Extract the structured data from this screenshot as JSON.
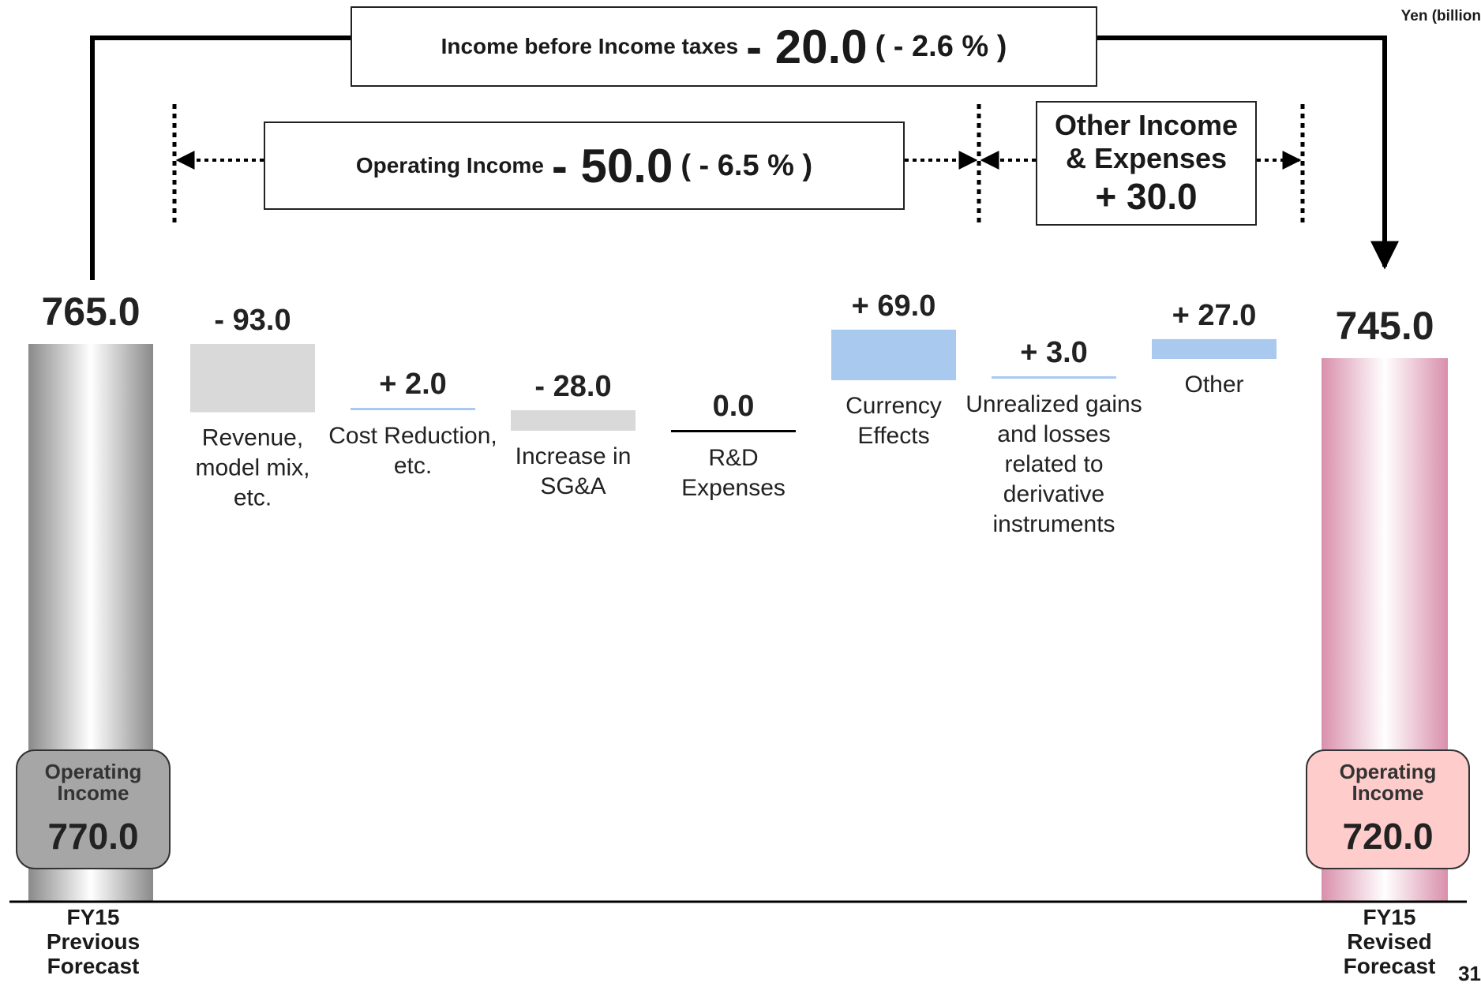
{
  "unit_label": "Yen (billion",
  "page_number": "31",
  "summary": {
    "ibt": {
      "label": "Income before Income taxes",
      "value": "- 20.0",
      "pct": "( - 2.6 % )"
    },
    "op": {
      "label": "Operating Income",
      "value": "- 50.0",
      "pct": "(  - 6.5 % )"
    },
    "other": {
      "line1": "Other Income",
      "line2": "& Expenses",
      "value": "+ 30.0"
    }
  },
  "start": {
    "value_label": "765.0",
    "inner_label": "Operating Income",
    "inner_value": "770.0",
    "label_lines": [
      "FY15",
      "Previous",
      "Forecast"
    ]
  },
  "end": {
    "value_label": "745.0",
    "inner_label": "Operating Income",
    "inner_value": "720.0",
    "label_lines": [
      "FY15",
      "Revised",
      "Forecast"
    ]
  },
  "colors": {
    "negative": "#d9d9d9",
    "positive": "#a9c9ef",
    "start_bar": "#8c8c8c",
    "end_bar": "#d98fab",
    "start_inner": "#a6a6a6",
    "end_inner": "#ffcccc"
  },
  "chart_data": {
    "type": "waterfall",
    "title": "",
    "unit": "Yen (billion",
    "start": {
      "category": "FY15 Previous Forecast",
      "value": 765.0
    },
    "end": {
      "category": "FY15 Revised Forecast",
      "value": 745.0
    },
    "steps": [
      {
        "name": "Revenue, model mix, etc.",
        "label_lines": [
          "Revenue,",
          "model mix,",
          "etc."
        ],
        "value": -93.0,
        "value_label": "- 93.0"
      },
      {
        "name": "Cost Reduction, etc.",
        "label_lines": [
          "Cost Reduction,",
          "etc."
        ],
        "value": 2.0,
        "value_label": "+ 2.0"
      },
      {
        "name": "Increase in SG&A",
        "label_lines": [
          "Increase in",
          "SG&A"
        ],
        "value": -28.0,
        "value_label": "- 28.0"
      },
      {
        "name": "R&D Expenses",
        "label_lines": [
          "R&D",
          "Expenses"
        ],
        "value": 0.0,
        "value_label": "0.0"
      },
      {
        "name": "Currency Effects",
        "label_lines": [
          "Currency",
          "Effects"
        ],
        "value": 69.0,
        "value_label": "+ 69.0"
      },
      {
        "name": "Unrealized gains and losses related to derivative instruments",
        "label_lines": [
          "Unrealized gains",
          "and losses",
          "related to",
          "derivative",
          "instruments"
        ],
        "value": 3.0,
        "value_label": "+ 3.0"
      },
      {
        "name": "Other",
        "label_lines": [
          "Other"
        ],
        "value": 27.0,
        "value_label": "+ 27.0"
      }
    ]
  }
}
